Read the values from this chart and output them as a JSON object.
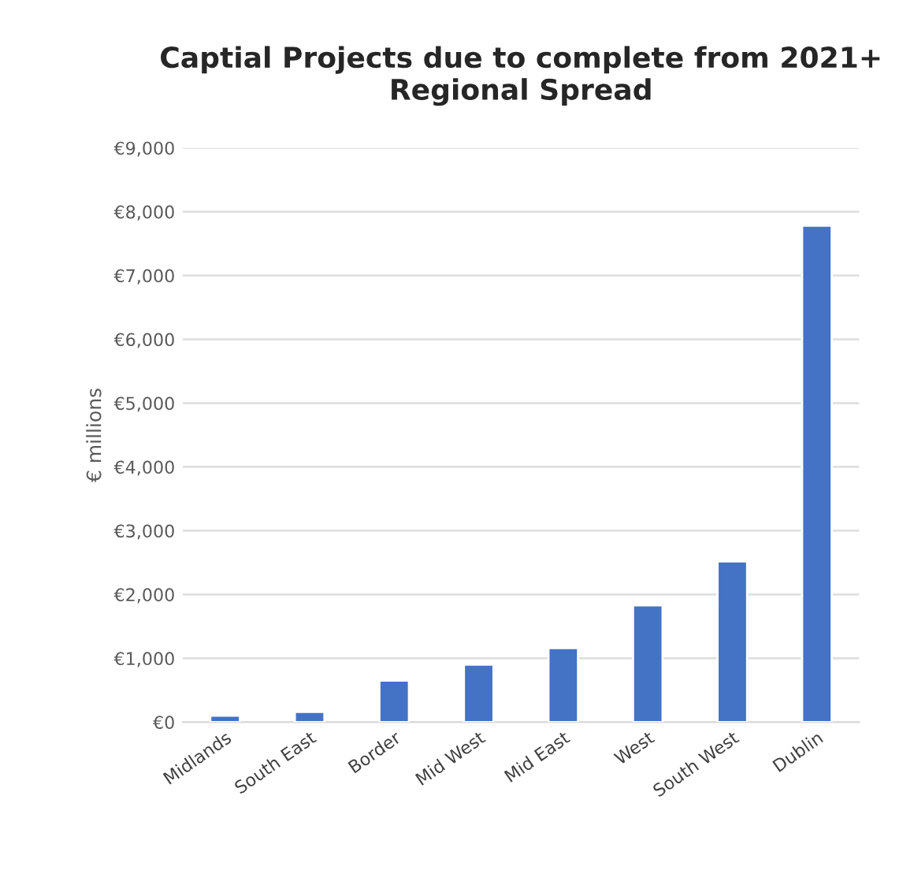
{
  "chart_data": {
    "type": "bar",
    "title": "Captial Projects due to complete from 2021+\nRegional Spread",
    "ylabel": "€ millions",
    "categories": [
      "Midlands",
      "South East",
      "Border",
      "Mid West",
      "Mid East",
      "West",
      "South West",
      "Dublin"
    ],
    "values": [
      100,
      160,
      650,
      900,
      1160,
      1830,
      2520,
      7780
    ],
    "color": "#4472c4",
    "ylim": [
      0,
      9000
    ],
    "yticks": [
      {
        "value": 0,
        "label": "€0"
      },
      {
        "value": 1000,
        "label": "€1,000"
      },
      {
        "value": 2000,
        "label": "€2,000"
      },
      {
        "value": 3000,
        "label": "€3,000"
      },
      {
        "value": 4000,
        "label": "€4,000"
      },
      {
        "value": 5000,
        "label": "€5,000"
      },
      {
        "value": 6000,
        "label": "€6,000"
      },
      {
        "value": 7000,
        "label": "€7,000"
      },
      {
        "value": 8000,
        "label": "€8,000"
      },
      {
        "value": 9000,
        "label": "€9,000"
      }
    ],
    "grid": "y"
  }
}
